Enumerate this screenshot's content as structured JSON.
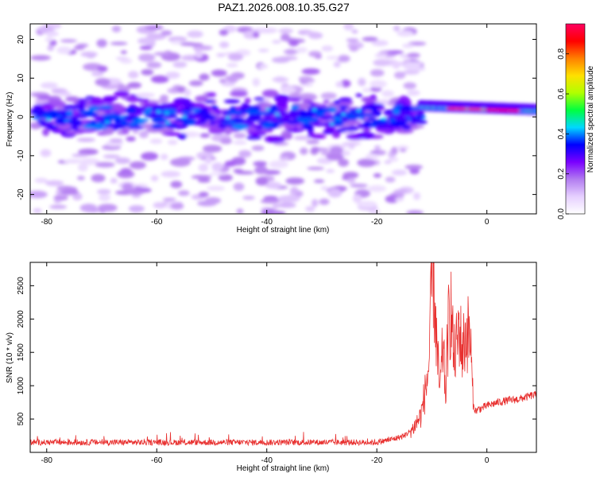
{
  "figure_title": "PAZ1.2026.008.10.35.G27",
  "chart_data": [
    {
      "type": "heatmap",
      "title": "PAZ1.2026.008.10.35.G27",
      "xlabel": "Height of straight line (km)",
      "ylabel": "Frequency (Hz)",
      "xlim": [
        -83,
        9
      ],
      "ylim": [
        -25,
        24
      ],
      "xticks": [
        -80,
        -60,
        -40,
        -20,
        0
      ],
      "yticks": [
        -20,
        -10,
        0,
        10,
        20
      ],
      "colorbar": {
        "label": "Normalized spectral amplitude",
        "range": [
          0.0,
          0.95
        ],
        "ticks": [
          0.0,
          0.2,
          0.4,
          0.6,
          0.8
        ],
        "colors": [
          "#ffffff",
          "#e6d0ff",
          "#b27cf0",
          "#7a00ff",
          "#0000ff",
          "#00d8ff",
          "#00ff40",
          "#b0ff00",
          "#ffe000",
          "#ff8000",
          "#ff0000",
          "#ff0060"
        ]
      },
      "features": {
        "band_center_hz": 0,
        "band_halfwidth_hz": 3.5,
        "strong_signal_start_km": -12,
        "strong_signal_end_km": 9,
        "strong_signal_frequency_hz": [
          2.5,
          1.5
        ],
        "peak_amplitude_km": [
          -5,
          3
        ]
      }
    },
    {
      "type": "line",
      "xlabel": "Height of straight line (km)",
      "ylabel": "SNR (10 * v/v)",
      "xlim": [
        -83,
        9
      ],
      "ylim": [
        0,
        2850
      ],
      "xticks": [
        -80,
        -60,
        -40,
        -20,
        0
      ],
      "yticks": [
        500,
        1000,
        1500,
        2000,
        2500
      ],
      "series": [
        {
          "name": "SNR",
          "color": "#e8302f",
          "envelope": {
            "x": [
              -83,
              -20,
              -17,
              -15,
              -13.5,
              -12,
              -11,
              -10.5,
              -10,
              -9.8,
              -9.5,
              -9,
              -8.5,
              -8,
              -7.5,
              -7,
              -6.5,
              -6,
              -5.5,
              -5,
              -4.5,
              -4,
              -3.5,
              -3,
              -2.5,
              -2,
              -1.5,
              -1,
              0,
              2,
              4,
              6,
              8,
              9
            ],
            "y": [
              150,
              150,
              200,
              250,
              350,
              550,
              1000,
              1350,
              2500,
              2850,
              2300,
              1400,
              900,
              1600,
              900,
              1900,
              2150,
              1400,
              1600,
              1900,
              1500,
              1700,
              1800,
              1700,
              700,
              620,
              650,
              660,
              700,
              750,
              780,
              800,
              850,
              860
            ]
          },
          "noise_amplitude": 45
        }
      ]
    }
  ]
}
